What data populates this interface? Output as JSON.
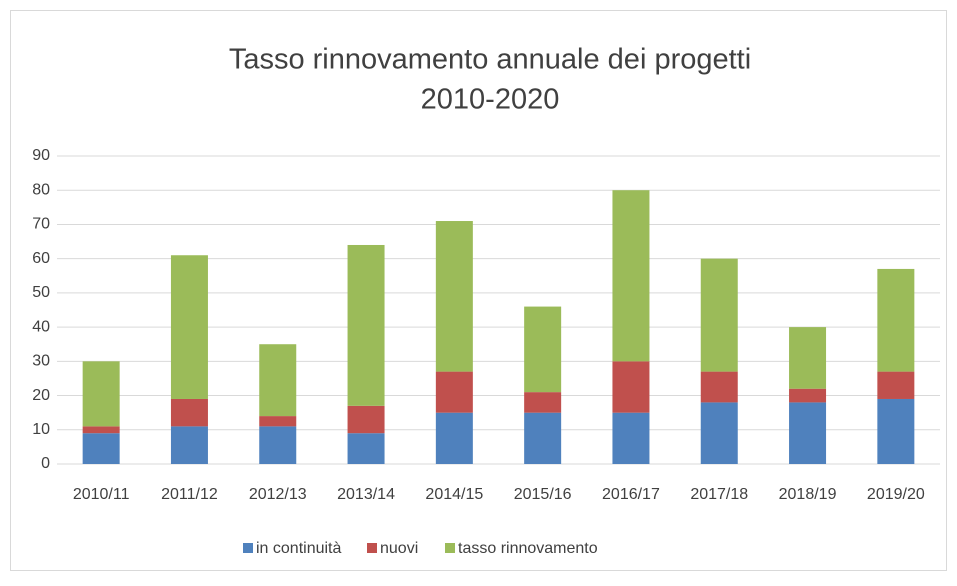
{
  "chart_data": {
    "type": "stacked_bar",
    "title_lines": [
      "Tasso rinnovamento annuale dei progetti",
      "2010-2020"
    ],
    "categories": [
      "2010/11",
      "2011/12",
      "2012/13",
      "2013/14",
      "2014/15",
      "2015/16",
      "2016/17",
      "2017/18",
      "2018/19",
      "2019/20"
    ],
    "series": [
      {
        "name": "in continuità",
        "color": "#4f81bd",
        "values": [
          9,
          11,
          11,
          9,
          15,
          15,
          15,
          18,
          18,
          19
        ]
      },
      {
        "name": "nuovi",
        "color": "#c0504d",
        "values": [
          2,
          8,
          3,
          8,
          12,
          6,
          15,
          9,
          4,
          8
        ]
      },
      {
        "name": "tasso rinnovamento",
        "color": "#9bbb59",
        "values": [
          19,
          42,
          21,
          47,
          44,
          25,
          50,
          33,
          18,
          30
        ]
      }
    ],
    "ylim": [
      0,
      90
    ],
    "yticks": [
      0,
      10,
      20,
      30,
      40,
      50,
      60,
      70,
      80,
      90
    ],
    "grid": true,
    "legend": "bottom"
  }
}
